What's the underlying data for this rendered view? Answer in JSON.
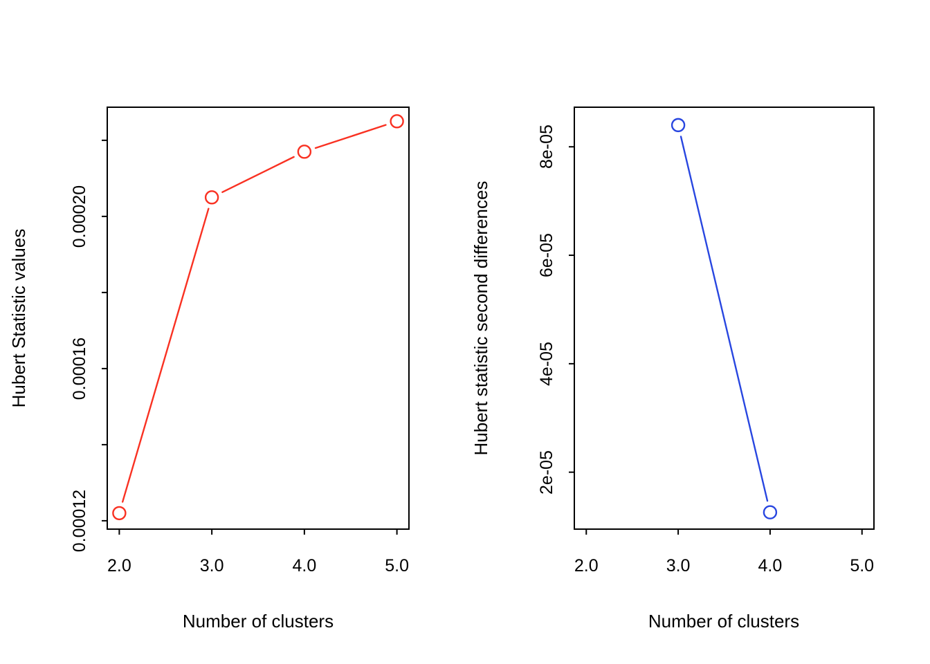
{
  "figure_background": "#ffffff",
  "axis_color": "#000000",
  "text_color": "#000000",
  "chart_data": [
    {
      "type": "line",
      "panel": "left",
      "title": "",
      "xlabel": "Number of clusters",
      "ylabel": "Hubert Statistic values",
      "marker": "open-circle",
      "line_color": "#f93122",
      "grid": false,
      "legend": null,
      "xlim": [
        1.87,
        5.13
      ],
      "ylim": [
        0.0001178,
        0.0002287
      ],
      "series": [
        {
          "name": "Hubert statistic values",
          "x": [
            2,
            3,
            4,
            5
          ],
          "y": [
            0.000122,
            0.000205,
            0.000217,
            0.000225
          ]
        }
      ],
      "x_ticks": [
        {
          "value": 2,
          "label": "2.0"
        },
        {
          "value": 3,
          "label": "3.0"
        },
        {
          "value": 4,
          "label": "4.0"
        },
        {
          "value": 5,
          "label": "5.0"
        }
      ],
      "y_ticks": [
        {
          "value": 0.00012,
          "label": "0.00012"
        },
        {
          "value": 0.00014,
          "label": ""
        },
        {
          "value": 0.00016,
          "label": "0.00016"
        },
        {
          "value": 0.00018,
          "label": ""
        },
        {
          "value": 0.0002,
          "label": "0.00020"
        },
        {
          "value": 0.00022,
          "label": ""
        }
      ]
    },
    {
      "type": "line",
      "panel": "right",
      "title": "",
      "xlabel": "Number of clusters",
      "ylabel": "Hubert statistic second differences",
      "marker": "open-circle",
      "line_color": "#2846e0",
      "grid": false,
      "legend": null,
      "xlim": [
        1.87,
        5.13
      ],
      "ylim": [
        9.5e-06,
        8.73e-05
      ],
      "series": [
        {
          "name": "Hubert statistic second differences",
          "x": [
            3,
            4
          ],
          "y": [
            8.4e-05,
            1.26e-05
          ]
        }
      ],
      "x_ticks": [
        {
          "value": 2,
          "label": "2.0"
        },
        {
          "value": 3,
          "label": "3.0"
        },
        {
          "value": 4,
          "label": "4.0"
        },
        {
          "value": 5,
          "label": "5.0"
        }
      ],
      "y_ticks": [
        {
          "value": 2e-05,
          "label": "2e-05"
        },
        {
          "value": 4e-05,
          "label": "4e-05"
        },
        {
          "value": 6e-05,
          "label": "6e-05"
        },
        {
          "value": 8e-05,
          "label": "8e-05"
        }
      ]
    }
  ]
}
